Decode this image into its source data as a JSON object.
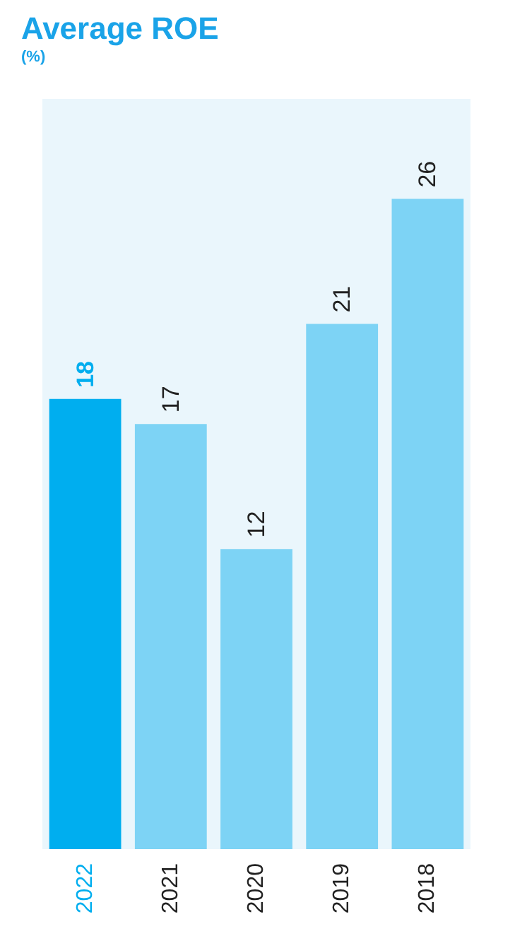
{
  "chart_data": {
    "type": "bar",
    "title": "Average ROE",
    "subtitle": "(%)",
    "categories": [
      "2022",
      "2021",
      "2020",
      "2019",
      "2018"
    ],
    "values": [
      18,
      17,
      12,
      21,
      26
    ],
    "colors": [
      "#00aeef",
      "#7dd3f5",
      "#7dd3f5",
      "#7dd3f5",
      "#7dd3f5"
    ],
    "data_labels": true
  }
}
